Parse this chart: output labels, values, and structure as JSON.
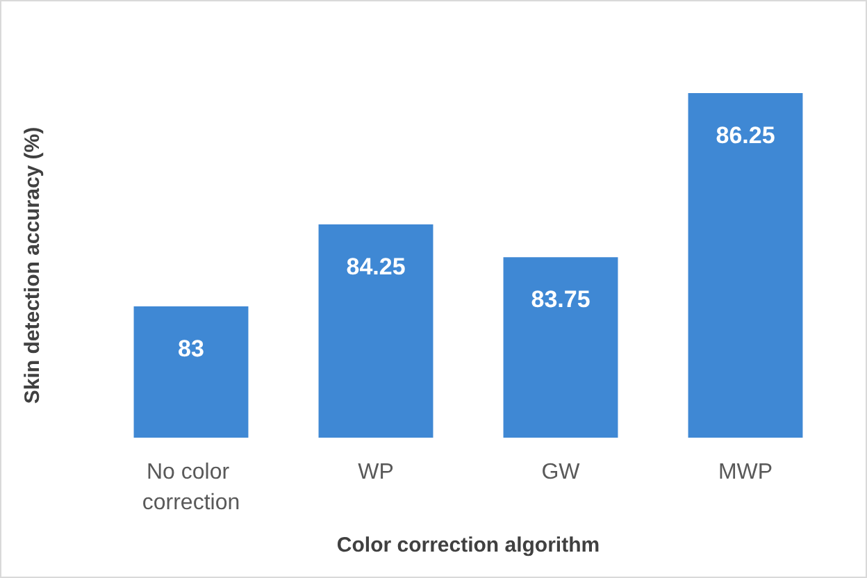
{
  "chart_data": {
    "type": "bar",
    "xlabel": "Color correction algorithm",
    "ylabel": "Skin detection accuracy (%)",
    "categories": [
      "No color correction",
      "WP",
      "GW",
      "MWP"
    ],
    "values": [
      83,
      84.25,
      83.75,
      86.25
    ],
    "color": "#3f88d4",
    "ylim": [
      81,
      86.25
    ],
    "tick_labels": "x",
    "grid": false,
    "data_labels": true
  }
}
